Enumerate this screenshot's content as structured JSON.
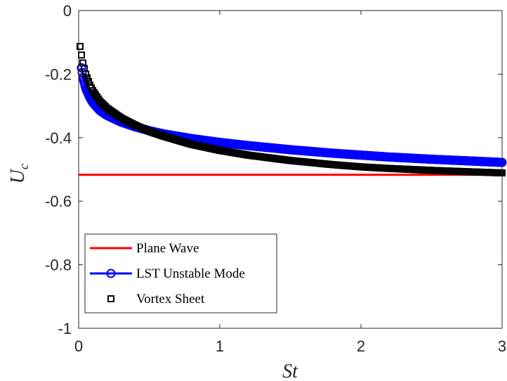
{
  "chart_data": {
    "type": "line",
    "xlabel": "St",
    "ylabel": {
      "main": "U",
      "sub": "c"
    },
    "xlim": [
      0,
      3
    ],
    "ylim": [
      -1,
      0
    ],
    "x_ticks": [
      0,
      1,
      2,
      3
    ],
    "y_ticks": [
      0,
      -0.2,
      -0.4,
      -0.6,
      -0.8,
      -1
    ],
    "x_tick_labels": [
      "0",
      "1",
      "2",
      "3"
    ],
    "y_tick_labels": [
      "0",
      "-0.2",
      "-0.4",
      "-0.6",
      "-0.8",
      "-1"
    ],
    "grid": false,
    "legend_placement": "bottom-left",
    "series": [
      {
        "name": "Plane Wave",
        "style": "line",
        "color": "#ff0000",
        "x": [
          0,
          3
        ],
        "y": [
          -0.517,
          -0.517
        ]
      },
      {
        "name": "LST Unstable Mode",
        "style": "line-circle",
        "color": "#0000ff",
        "x": [
          0.02,
          0.03,
          0.05,
          0.08,
          0.1,
          0.15,
          0.2,
          0.3,
          0.4,
          0.5,
          0.6,
          0.8,
          1.0,
          1.2,
          1.5,
          1.8,
          2.0,
          2.2,
          2.5,
          2.8,
          3.0
        ],
        "y": [
          -0.18,
          -0.21,
          -0.245,
          -0.275,
          -0.29,
          -0.315,
          -0.33,
          -0.351,
          -0.366,
          -0.378,
          -0.388,
          -0.403,
          -0.415,
          -0.425,
          -0.438,
          -0.449,
          -0.455,
          -0.461,
          -0.468,
          -0.474,
          -0.478
        ]
      },
      {
        "name": "Vortex Sheet",
        "style": "marker-square",
        "color": "#000000",
        "x": [
          0.01,
          0.02,
          0.03,
          0.05,
          0.08,
          0.1,
          0.15,
          0.2,
          0.3,
          0.4,
          0.5,
          0.6,
          0.8,
          1.0,
          1.2,
          1.5,
          1.8,
          2.0,
          2.2,
          2.5,
          2.8,
          3.0
        ],
        "y": [
          -0.113,
          -0.14,
          -0.165,
          -0.2,
          -0.235,
          -0.252,
          -0.285,
          -0.307,
          -0.338,
          -0.361,
          -0.38,
          -0.395,
          -0.421,
          -0.44,
          -0.455,
          -0.472,
          -0.485,
          -0.492,
          -0.497,
          -0.503,
          -0.508,
          -0.511
        ]
      }
    ]
  }
}
